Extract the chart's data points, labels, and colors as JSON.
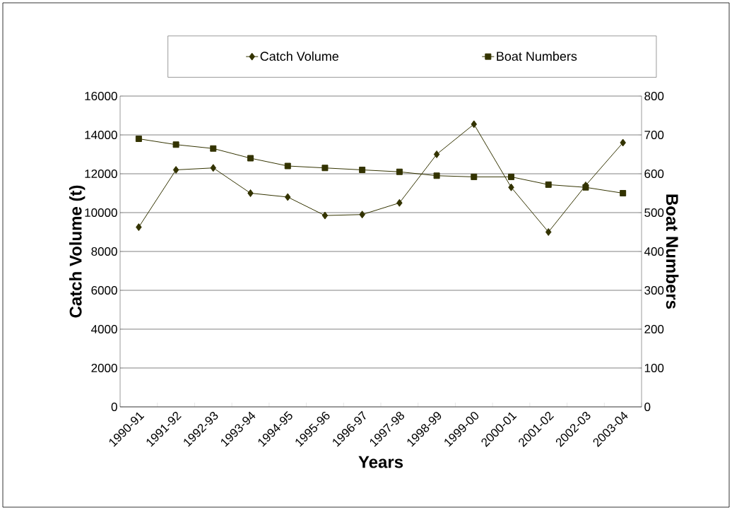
{
  "chart_data": {
    "type": "line",
    "xlabel": "Years",
    "ylabel": "Catch Volume (t)",
    "y2label": "Boat Numbers",
    "categories": [
      "1990-91",
      "1991-92",
      "1992-93",
      "1993-94",
      "1994-95",
      "1995-96",
      "1996-97",
      "1997-98",
      "1998-99",
      "1999-00",
      "2000-01",
      "2001-02",
      "2002-03",
      "2003-04"
    ],
    "series": [
      {
        "name": "Catch Volume",
        "color": "#333300",
        "marker": "diamond",
        "values": [
          9250,
          12200,
          12300,
          11000,
          10800,
          9850,
          9900,
          10500,
          13000,
          14550,
          11300,
          9000,
          11400,
          13600
        ]
      },
      {
        "name": "Boat Numbers",
        "color": "#333300",
        "marker": "square",
        "axis": "y2",
        "values": [
          690,
          675,
          665,
          640,
          620,
          615,
          610,
          605,
          595,
          592,
          592,
          572,
          565,
          550
        ]
      }
    ],
    "ylim": [
      0,
      16000
    ],
    "yticks": [
      0,
      2000,
      4000,
      6000,
      8000,
      10000,
      12000,
      14000,
      16000
    ],
    "y2lim": [
      0,
      800
    ],
    "y2ticks": [
      0,
      100,
      200,
      300,
      400,
      500,
      600,
      700,
      800
    ],
    "grid": "y",
    "legend": "top"
  }
}
